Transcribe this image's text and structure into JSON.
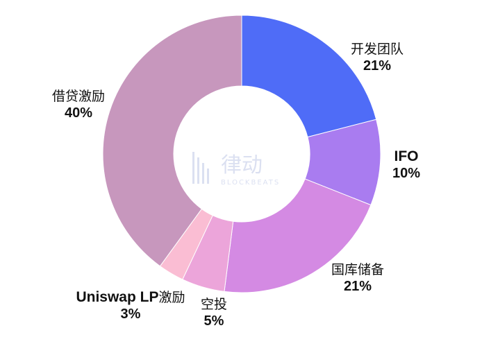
{
  "chart_data": {
    "type": "pie",
    "donut": true,
    "slices": [
      {
        "label": "开发团队",
        "value": 21,
        "pct_label": "21%",
        "color": "#4f6cf7"
      },
      {
        "label": "IFO",
        "value": 10,
        "pct_label": "10%",
        "color": "#a97cf0"
      },
      {
        "label": "国库储备",
        "value": 21,
        "pct_label": "21%",
        "color": "#d48ae3"
      },
      {
        "label": "空投",
        "value": 5,
        "pct_label": "5%",
        "color": "#eca5da"
      },
      {
        "label": "Uniswap LP激励",
        "value": 3,
        "pct_label": "3%",
        "color": "#fabdd3"
      },
      {
        "label": "借贷激励",
        "value": 40,
        "pct_label": "40%",
        "color": "#c797bd"
      }
    ]
  },
  "watermark": {
    "text": "律动",
    "sub": "BLOCKBEATS"
  }
}
